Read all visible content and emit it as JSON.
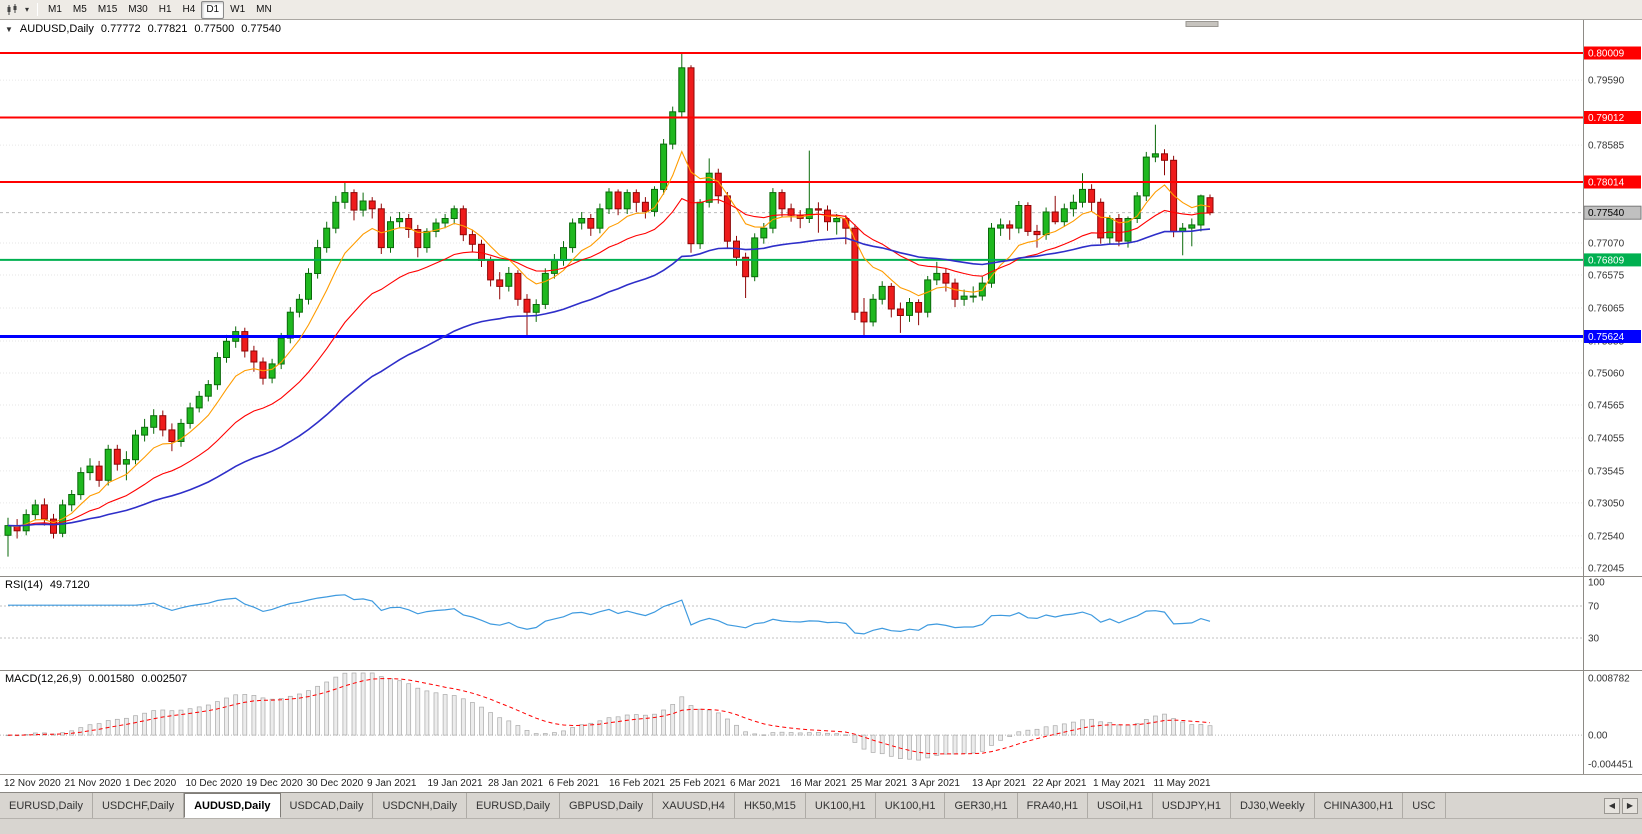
{
  "icons": {
    "collapse": "▼",
    "dropdown": "▾",
    "scroll_left": "◀",
    "scroll_right": "▶"
  },
  "toolbar": {
    "timeframes": [
      "M1",
      "M5",
      "M15",
      "M30",
      "H1",
      "H4",
      "D1",
      "W1",
      "MN"
    ],
    "active_timeframe": "D1"
  },
  "chart_header": {
    "symbol": "AUDUSD,Daily",
    "open": "0.77772",
    "high": "0.77821",
    "low": "0.77500",
    "close": "0.77540"
  },
  "price_axis_ticks": [
    "0.79590",
    "0.78585",
    "0.77070",
    "0.76575",
    "0.76065",
    "0.75555",
    "0.75060",
    "0.74565",
    "0.74055",
    "0.73545",
    "0.73050",
    "0.72540",
    "0.72045"
  ],
  "horizontal_lines": [
    {
      "label": "0.80009",
      "value": 0.80009,
      "color": "#FF0000",
      "thickness": 2
    },
    {
      "label": "0.79012",
      "value": 0.79012,
      "color": "#FF0000",
      "thickness": 2
    },
    {
      "label": "0.78014",
      "value": 0.78014,
      "color": "#FF0000",
      "thickness": 2
    },
    {
      "label": "0.76809",
      "value": 0.76809,
      "color": "#00B050",
      "thickness": 2
    },
    {
      "label": "0.75624",
      "value": 0.75624,
      "color": "#0000FF",
      "thickness": 3
    }
  ],
  "current_price": {
    "label": "0.77540",
    "value": 0.7754,
    "badge_bg": "#C0C0C0"
  },
  "indicators": {
    "rsi": {
      "label": "RSI(14)",
      "value": "49.7120",
      "line_color": "#3E9ADF",
      "levels": [
        70,
        30
      ],
      "axis_ticks": [
        {
          "label": "100",
          "value": 100
        },
        {
          "label": "70",
          "value": 70
        },
        {
          "label": "30",
          "value": 30
        }
      ]
    },
    "macd": {
      "label": "MACD(12,26,9)",
      "main_value": "0.001580",
      "signal_value": "0.002507",
      "histogram_color": "#ECECEC",
      "histogram_border": "#A9A9A9",
      "signal_color": "#FF0000",
      "axis_ticks": [
        {
          "label": "0.008782",
          "value": 0.008782
        },
        {
          "label": "0.00",
          "value": 0
        },
        {
          "label": "-0.004451",
          "value": -0.004451
        }
      ]
    }
  },
  "colors": {
    "bull_fill": "#1FB81F",
    "bull_border": "#0A6A0A",
    "bear_fill": "#EE1C1C",
    "bear_border": "#8F0606"
  },
  "chart_data": {
    "type": "candlestick",
    "title": "AUDUSD,Daily",
    "symbol": "AUDUSD",
    "timeframe": "Daily",
    "price_range": [
      0.7192,
      0.8052
    ],
    "grid": "dotted-horizontal",
    "x_labels": [
      "12 Nov 2020",
      "21 Nov 2020",
      "1 Dec 2020",
      "10 Dec 2020",
      "19 Dec 2020",
      "30 Dec 2020",
      "9 Jan 2021",
      "19 Jan 2021",
      "28 Jan 2021",
      "6 Feb 2021",
      "16 Feb 2021",
      "25 Feb 2021",
      "6 Mar 2021",
      "16 Mar 2021",
      "25 Mar 2021",
      "3 Apr 2021",
      "13 Apr 2021",
      "22 Apr 2021",
      "1 May 2021",
      "11 May 2021"
    ],
    "moving_averages": [
      {
        "name": "MA-fast",
        "period": 8,
        "color": "#FF9C00",
        "width": 1.1
      },
      {
        "name": "MA-mid",
        "period": 21,
        "color": "#FF0000",
        "width": 1.1
      },
      {
        "name": "MA-slow",
        "period": 50,
        "color": "#2E2EC9",
        "width": 1.6
      }
    ],
    "candles": [
      [
        0.7255,
        0.7282,
        0.7222,
        0.727
      ],
      [
        0.727,
        0.728,
        0.725,
        0.7262
      ],
      [
        0.7262,
        0.7295,
        0.7255,
        0.7287
      ],
      [
        0.7287,
        0.731,
        0.7278,
        0.7302
      ],
      [
        0.7302,
        0.7312,
        0.727,
        0.728
      ],
      [
        0.728,
        0.7288,
        0.725,
        0.7258
      ],
      [
        0.7258,
        0.731,
        0.7252,
        0.7302
      ],
      [
        0.7302,
        0.7325,
        0.7292,
        0.7318
      ],
      [
        0.7318,
        0.736,
        0.731,
        0.7352
      ],
      [
        0.7352,
        0.7374,
        0.734,
        0.7362
      ],
      [
        0.7362,
        0.737,
        0.733,
        0.734
      ],
      [
        0.734,
        0.7395,
        0.7332,
        0.7388
      ],
      [
        0.7388,
        0.7395,
        0.7355,
        0.7365
      ],
      [
        0.7365,
        0.7385,
        0.734,
        0.7372
      ],
      [
        0.7372,
        0.7418,
        0.7365,
        0.741
      ],
      [
        0.741,
        0.7435,
        0.74,
        0.7422
      ],
      [
        0.7422,
        0.745,
        0.7412,
        0.744
      ],
      [
        0.744,
        0.7448,
        0.7408,
        0.7418
      ],
      [
        0.7418,
        0.7428,
        0.7385,
        0.74
      ],
      [
        0.74,
        0.7435,
        0.7392,
        0.7428
      ],
      [
        0.7428,
        0.746,
        0.742,
        0.7452
      ],
      [
        0.7452,
        0.7478,
        0.7445,
        0.747
      ],
      [
        0.747,
        0.7495,
        0.7462,
        0.7488
      ],
      [
        0.7488,
        0.7538,
        0.748,
        0.753
      ],
      [
        0.753,
        0.7565,
        0.7522,
        0.7555
      ],
      [
        0.7555,
        0.7578,
        0.7545,
        0.757
      ],
      [
        0.757,
        0.7576,
        0.753,
        0.754
      ],
      [
        0.754,
        0.7548,
        0.7508,
        0.7523
      ],
      [
        0.7523,
        0.753,
        0.7488,
        0.7498
      ],
      [
        0.7498,
        0.7528,
        0.749,
        0.752
      ],
      [
        0.752,
        0.7568,
        0.7512,
        0.756
      ],
      [
        0.756,
        0.7608,
        0.7552,
        0.76
      ],
      [
        0.76,
        0.7628,
        0.7592,
        0.762
      ],
      [
        0.762,
        0.7668,
        0.7612,
        0.766
      ],
      [
        0.766,
        0.7712,
        0.7652,
        0.77
      ],
      [
        0.77,
        0.774,
        0.7692,
        0.773
      ],
      [
        0.773,
        0.778,
        0.7722,
        0.777
      ],
      [
        0.777,
        0.78,
        0.776,
        0.7785
      ],
      [
        0.7785,
        0.779,
        0.7742,
        0.7758
      ],
      [
        0.7758,
        0.7785,
        0.7748,
        0.7772
      ],
      [
        0.7772,
        0.7778,
        0.7745,
        0.776
      ],
      [
        0.776,
        0.7768,
        0.769,
        0.77
      ],
      [
        0.77,
        0.7748,
        0.7692,
        0.774
      ],
      [
        0.774,
        0.7755,
        0.773,
        0.7745
      ],
      [
        0.7745,
        0.7752,
        0.7715,
        0.7728
      ],
      [
        0.7728,
        0.7735,
        0.7685,
        0.77
      ],
      [
        0.77,
        0.773,
        0.7692,
        0.7725
      ],
      [
        0.7725,
        0.7745,
        0.7716,
        0.7738
      ],
      [
        0.7738,
        0.7752,
        0.773,
        0.7745
      ],
      [
        0.7745,
        0.7765,
        0.7736,
        0.776
      ],
      [
        0.776,
        0.7765,
        0.771,
        0.772
      ],
      [
        0.772,
        0.7728,
        0.7694,
        0.7705
      ],
      [
        0.7705,
        0.7712,
        0.767,
        0.768
      ],
      [
        0.768,
        0.7686,
        0.764,
        0.765
      ],
      [
        0.765,
        0.7662,
        0.762,
        0.764
      ],
      [
        0.764,
        0.767,
        0.7632,
        0.766
      ],
      [
        0.766,
        0.7665,
        0.761,
        0.762
      ],
      [
        0.762,
        0.7628,
        0.7564,
        0.76
      ],
      [
        0.76,
        0.762,
        0.7585,
        0.7612
      ],
      [
        0.7612,
        0.7668,
        0.7605,
        0.766
      ],
      [
        0.766,
        0.769,
        0.7652,
        0.768
      ],
      [
        0.768,
        0.771,
        0.7672,
        0.77
      ],
      [
        0.77,
        0.7745,
        0.7692,
        0.7738
      ],
      [
        0.7738,
        0.7755,
        0.7728,
        0.7745
      ],
      [
        0.7745,
        0.7752,
        0.7718,
        0.773
      ],
      [
        0.773,
        0.7768,
        0.7722,
        0.776
      ],
      [
        0.776,
        0.7792,
        0.7752,
        0.7786
      ],
      [
        0.7786,
        0.779,
        0.775,
        0.776
      ],
      [
        0.776,
        0.779,
        0.7752,
        0.7785
      ],
      [
        0.7785,
        0.779,
        0.7755,
        0.777
      ],
      [
        0.777,
        0.7778,
        0.7745,
        0.7756
      ],
      [
        0.7756,
        0.7795,
        0.7748,
        0.779
      ],
      [
        0.779,
        0.7868,
        0.7782,
        0.786
      ],
      [
        0.786,
        0.7918,
        0.7852,
        0.791
      ],
      [
        0.791,
        0.8001,
        0.79,
        0.7978
      ],
      [
        0.7978,
        0.7982,
        0.7692,
        0.7706
      ],
      [
        0.7706,
        0.7775,
        0.7698,
        0.777
      ],
      [
        0.777,
        0.7838,
        0.7762,
        0.7815
      ],
      [
        0.7815,
        0.7822,
        0.7768,
        0.778
      ],
      [
        0.778,
        0.7786,
        0.7698,
        0.771
      ],
      [
        0.771,
        0.7718,
        0.7672,
        0.7685
      ],
      [
        0.7685,
        0.7692,
        0.7622,
        0.7655
      ],
      [
        0.7655,
        0.7722,
        0.7648,
        0.7715
      ],
      [
        0.7715,
        0.7738,
        0.7706,
        0.773
      ],
      [
        0.773,
        0.7792,
        0.7722,
        0.7785
      ],
      [
        0.7785,
        0.779,
        0.7748,
        0.776
      ],
      [
        0.776,
        0.7768,
        0.774,
        0.775
      ],
      [
        0.775,
        0.7758,
        0.773,
        0.7745
      ],
      [
        0.7745,
        0.785,
        0.7738,
        0.776
      ],
      [
        0.776,
        0.777,
        0.7723,
        0.7758
      ],
      [
        0.7758,
        0.7765,
        0.7726,
        0.774
      ],
      [
        0.774,
        0.7752,
        0.772,
        0.7745
      ],
      [
        0.7745,
        0.775,
        0.7705,
        0.773
      ],
      [
        0.773,
        0.7736,
        0.7588,
        0.76
      ],
      [
        0.76,
        0.7622,
        0.7562,
        0.7585
      ],
      [
        0.7585,
        0.7628,
        0.7578,
        0.762
      ],
      [
        0.762,
        0.7648,
        0.7612,
        0.764
      ],
      [
        0.764,
        0.7645,
        0.7592,
        0.7605
      ],
      [
        0.7605,
        0.7615,
        0.7568,
        0.7595
      ],
      [
        0.7595,
        0.7622,
        0.7585,
        0.7615
      ],
      [
        0.7615,
        0.762,
        0.758,
        0.76
      ],
      [
        0.76,
        0.7656,
        0.7592,
        0.765
      ],
      [
        0.765,
        0.7678,
        0.7642,
        0.766
      ],
      [
        0.766,
        0.7668,
        0.7632,
        0.7645
      ],
      [
        0.7645,
        0.7652,
        0.7608,
        0.762
      ],
      [
        0.762,
        0.7635,
        0.761,
        0.7625
      ],
      [
        0.7625,
        0.764,
        0.7615,
        0.7625
      ],
      [
        0.7625,
        0.7655,
        0.7618,
        0.7645
      ],
      [
        0.7645,
        0.7738,
        0.7638,
        0.773
      ],
      [
        0.773,
        0.7745,
        0.7718,
        0.7735
      ],
      [
        0.7735,
        0.7742,
        0.7712,
        0.773
      ],
      [
        0.773,
        0.7772,
        0.7722,
        0.7765
      ],
      [
        0.7765,
        0.777,
        0.7718,
        0.7725
      ],
      [
        0.7725,
        0.7735,
        0.77,
        0.772
      ],
      [
        0.772,
        0.7762,
        0.7712,
        0.7755
      ],
      [
        0.7755,
        0.778,
        0.7736,
        0.774
      ],
      [
        0.774,
        0.7768,
        0.7732,
        0.776
      ],
      [
        0.776,
        0.7782,
        0.7748,
        0.777
      ],
      [
        0.777,
        0.7815,
        0.7762,
        0.779
      ],
      [
        0.779,
        0.7798,
        0.7755,
        0.777
      ],
      [
        0.777,
        0.7776,
        0.7706,
        0.7715
      ],
      [
        0.7715,
        0.775,
        0.7706,
        0.7745
      ],
      [
        0.7745,
        0.7752,
        0.7702,
        0.771
      ],
      [
        0.771,
        0.7748,
        0.77,
        0.7745
      ],
      [
        0.7745,
        0.7786,
        0.7738,
        0.778
      ],
      [
        0.778,
        0.7848,
        0.7772,
        0.784
      ],
      [
        0.784,
        0.789,
        0.7832,
        0.7845
      ],
      [
        0.7845,
        0.7852,
        0.7812,
        0.7835
      ],
      [
        0.7835,
        0.7842,
        0.7716,
        0.7725
      ],
      [
        0.7725,
        0.7738,
        0.7688,
        0.773
      ],
      [
        0.773,
        0.7745,
        0.7702,
        0.7735
      ],
      [
        0.7735,
        0.7782,
        0.7725,
        0.778
      ],
      [
        0.77772,
        0.77821,
        0.775,
        0.7754
      ]
    ]
  },
  "tabs": {
    "items": [
      "EURUSD,Daily",
      "USDCHF,Daily",
      "AUDUSD,Daily",
      "USDCAD,Daily",
      "USDCNH,Daily",
      "EURUSD,Daily",
      "GBPUSD,Daily",
      "XAUUSD,H4",
      "HK50,M15",
      "UK100,H1",
      "UK100,H1",
      "GER30,H1",
      "FRA40,H1",
      "USOil,H1",
      "USDJPY,H1",
      "DJ30,Weekly",
      "CHINA300,H1",
      "USC"
    ],
    "active_index": 2
  }
}
